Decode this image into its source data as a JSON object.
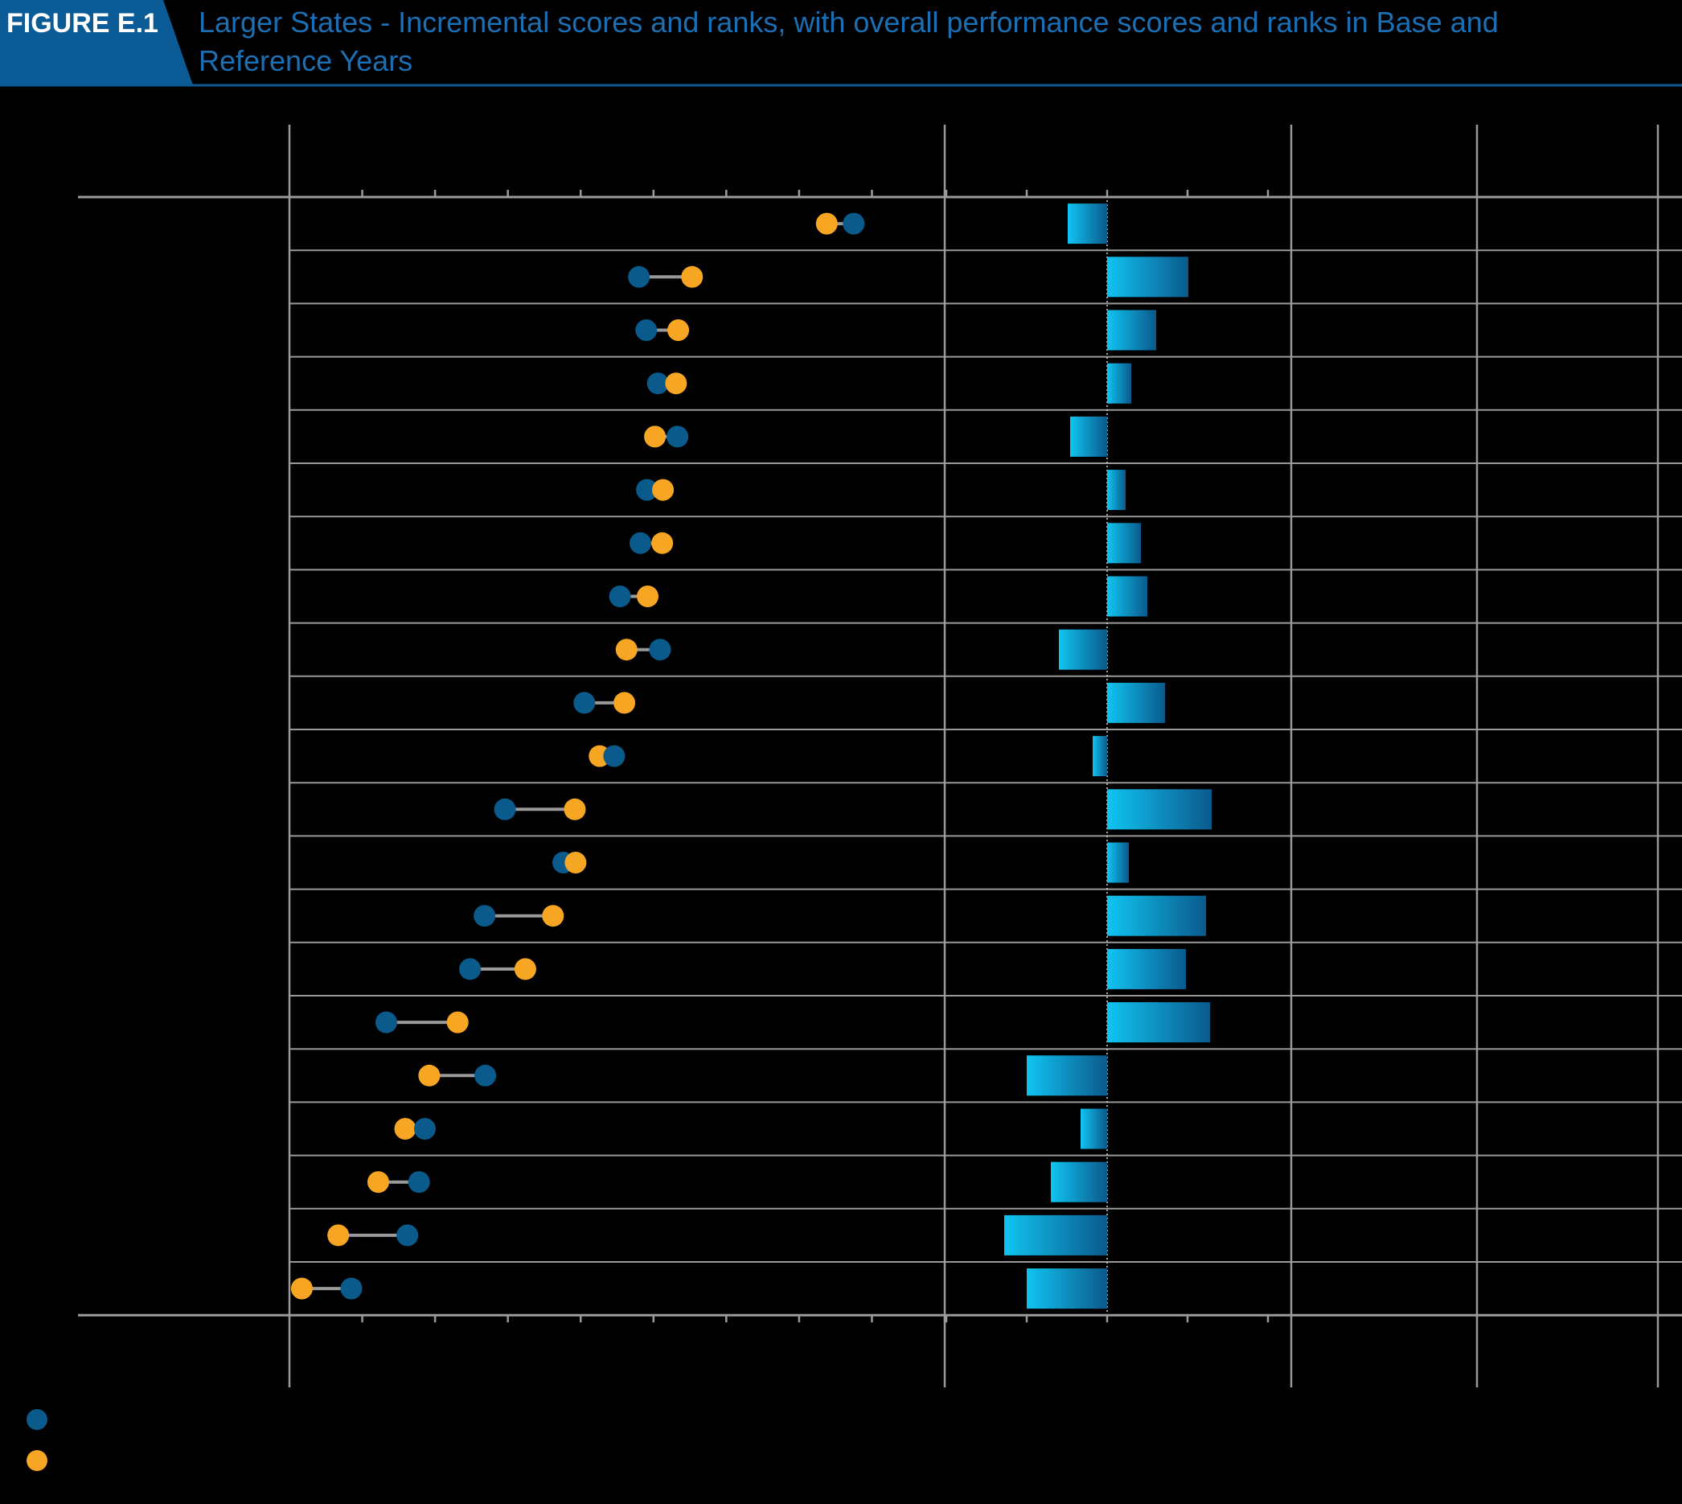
{
  "figure": {
    "label": "FIGURE E.1",
    "title_line1": "Larger States - Incremental scores and ranks, with overall performance scores and ranks in Base and",
    "title_line2": "Reference Years"
  },
  "colors": {
    "header_bg": "#0b5b96",
    "title_text": "#1a6fb5",
    "base_year": "#0a5a8c",
    "reference_year": "#f6a623",
    "connector": "#9a9a9a",
    "bar_light": "#10c4f2",
    "bar_dark": "#0a5a8c",
    "grid": "#9a9a9a"
  },
  "chart_data": [
    {
      "type": "dumbbell",
      "series": [
        {
          "name": "",
          "values": [
            77.5,
            48.0,
            49.0,
            50.6,
            53.3,
            49.1,
            48.2,
            45.4,
            50.9,
            40.5,
            44.6,
            29.6,
            37.6,
            26.8,
            24.8,
            13.3,
            26.9,
            18.6,
            17.8,
            16.2,
            8.5
          ]
        },
        {
          "name": "",
          "values": [
            73.8,
            55.3,
            53.4,
            53.1,
            50.2,
            51.3,
            51.2,
            49.2,
            46.3,
            46.0,
            42.6,
            39.2,
            39.3,
            36.2,
            32.4,
            23.1,
            19.2,
            15.9,
            12.2,
            6.7,
            1.7
          ]
        }
      ],
      "ylim": [
        0,
        90
      ]
    },
    {
      "type": "bar",
      "values": [
        -4.9,
        10.1,
        6.1,
        3.0,
        -4.6,
        2.3,
        4.2,
        5.0,
        -6.0,
        7.2,
        -1.8,
        13.0,
        2.7,
        12.3,
        9.8,
        12.8,
        -10.0,
        -3.3,
        -7.0,
        -12.8,
        -10.0
      ],
      "ylim": [
        -20,
        20
      ]
    }
  ]
}
